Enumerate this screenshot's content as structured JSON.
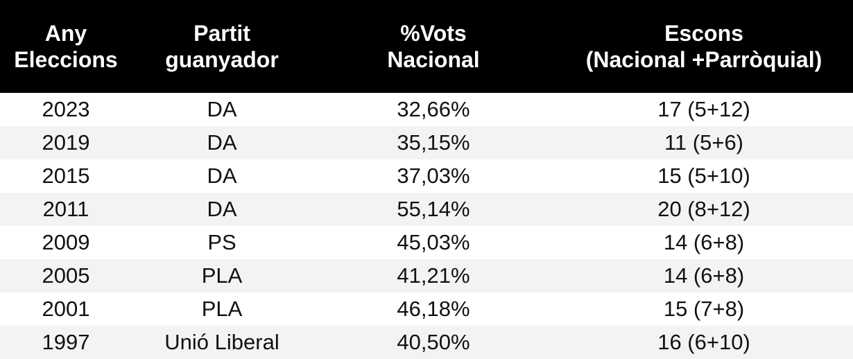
{
  "headers": [
    [
      "Any",
      "Eleccions"
    ],
    [
      "Partit",
      "guanyador"
    ],
    [
      "%Vots",
      "Nacional"
    ],
    [
      "Escons",
      "(Nacional +Parròquial)"
    ]
  ],
  "rows": [
    [
      "2023",
      "DA",
      "32,66%",
      "17 (5+12)"
    ],
    [
      "2019",
      "DA",
      "35,15%",
      "11 (5+6)"
    ],
    [
      "2015",
      "DA",
      "37,03%",
      "15 (5+10)"
    ],
    [
      "2011",
      "DA",
      "55,14%",
      "20 (8+12)"
    ],
    [
      "2009",
      "PS",
      "45,03%",
      "14 (6+8)"
    ],
    [
      "2005",
      "PLA",
      "41,21%",
      "14 (6+8)"
    ],
    [
      "2001",
      "PLA",
      "46,18%",
      "15 (7+8)"
    ],
    [
      "1997",
      "Unió Liberal",
      "40,50%",
      "16 (6+10)"
    ]
  ],
  "colors": {
    "header_background": "#000000",
    "header_text": "#ffffff",
    "row_stripe": "#f3f3f3",
    "row_background": "#ffffff"
  }
}
